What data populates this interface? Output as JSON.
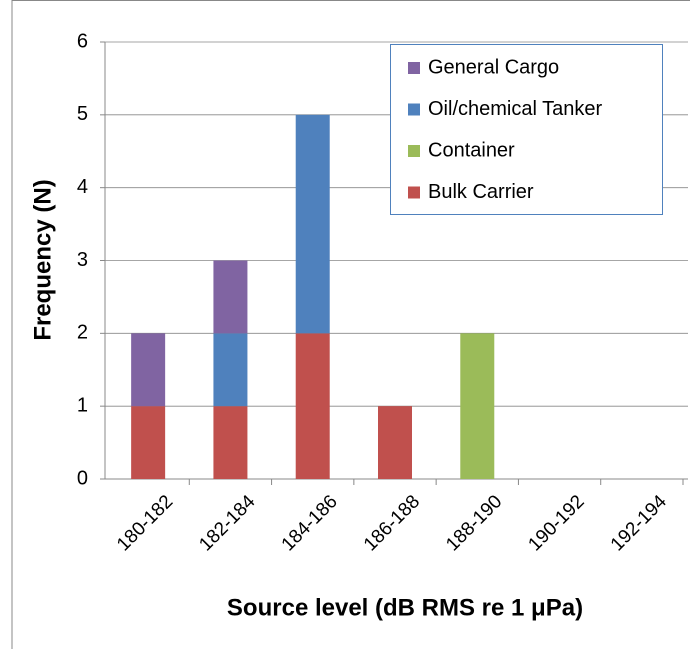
{
  "chart_data": {
    "type": "stacked-bar",
    "x_label": "Source level (dB RMS re 1 μPa)",
    "y_label": "Frequency (N)",
    "categories": [
      "180-182",
      "182-184",
      "184-186",
      "186-188",
      "188-190",
      "190-192",
      "192-194"
    ],
    "series": [
      {
        "name": "Bulk Carrier",
        "color": "#c0504d",
        "values": [
          1,
          1,
          2,
          1,
          0,
          0,
          0
        ]
      },
      {
        "name": "Container",
        "color": "#9bbb59",
        "values": [
          0,
          0,
          0,
          0,
          2,
          0,
          0
        ]
      },
      {
        "name": "Oil/chemical Tanker",
        "color": "#4f81bd",
        "values": [
          0,
          1,
          3,
          0,
          0,
          0,
          0
        ]
      },
      {
        "name": "General Cargo",
        "color": "#8064a2",
        "values": [
          1,
          1,
          0,
          0,
          0,
          0,
          0
        ]
      }
    ],
    "ylim": [
      0,
      6
    ],
    "yticks": [
      0,
      1,
      2,
      3,
      4,
      5,
      6
    ],
    "grid": true,
    "legend": "upper right"
  }
}
